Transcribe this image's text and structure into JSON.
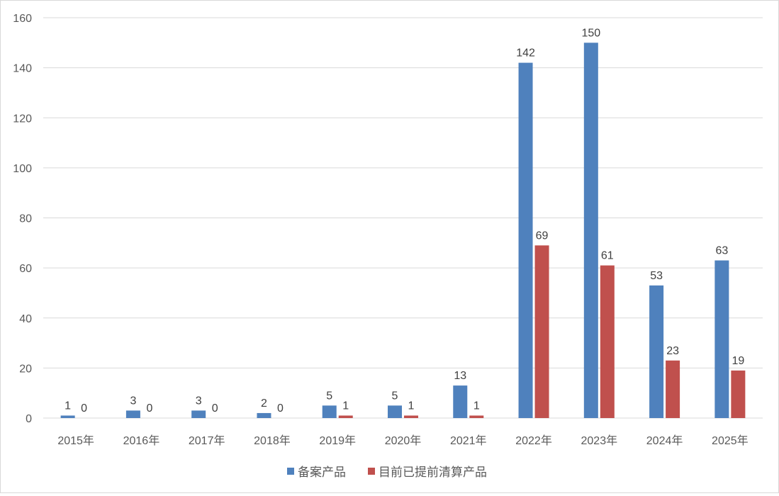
{
  "chart_data": {
    "type": "bar",
    "title": "",
    "xlabel": "",
    "ylabel": "",
    "categories": [
      "2015年",
      "2016年",
      "2017年",
      "2018年",
      "2019年",
      "2020年",
      "2021年",
      "2022年",
      "2023年",
      "2024年",
      "2025年"
    ],
    "series": [
      {
        "name": "备案产品",
        "color": "#4f81bd",
        "values": [
          1,
          3,
          3,
          2,
          5,
          5,
          13,
          142,
          150,
          53,
          63
        ]
      },
      {
        "name": "目前已提前清算产品",
        "color": "#c0504d",
        "values": [
          0,
          0,
          0,
          0,
          1,
          1,
          1,
          69,
          61,
          23,
          19
        ]
      }
    ],
    "ylim": [
      0,
      160
    ],
    "yticks": [
      0,
      20,
      40,
      60,
      80,
      100,
      120,
      140,
      160
    ],
    "grid": true,
    "data_labels": true,
    "legend_position": "bottom"
  }
}
